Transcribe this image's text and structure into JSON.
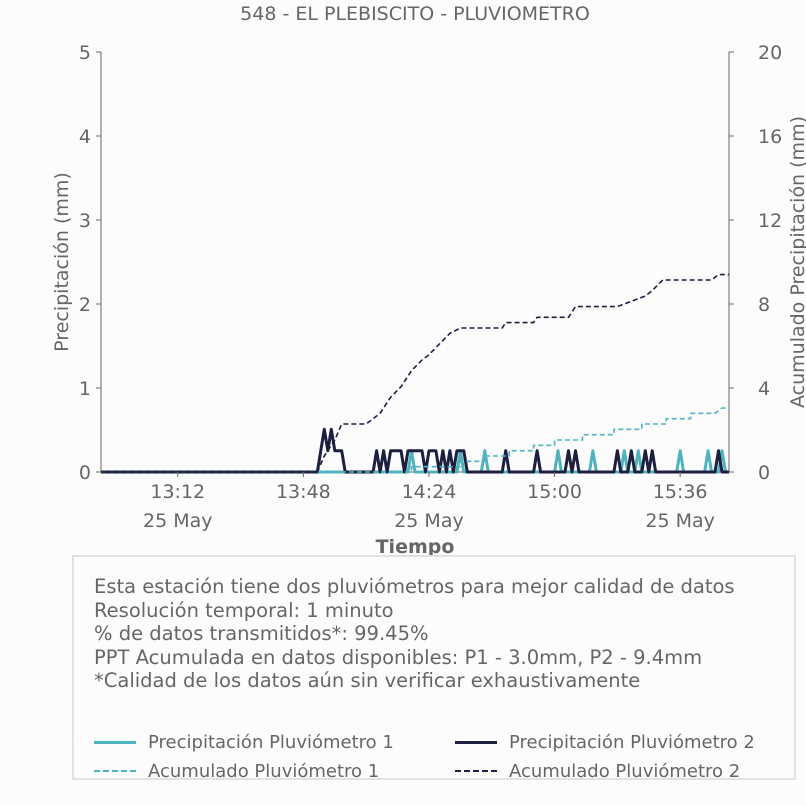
{
  "chart_data": {
    "type": "line",
    "title": "548 - EL PLEBISCITO - PLUVIOMETRO",
    "xlabel": "Tiempo",
    "ylabel": "Precipitación (mm)",
    "y2label": "Acumulado Precipitación (mm)",
    "xlim": [
      "12:50",
      "15:50"
    ],
    "ylim": [
      0,
      5
    ],
    "y2lim": [
      0,
      20
    ],
    "yticks": [
      "0",
      "1",
      "2",
      "3",
      "4",
      "5"
    ],
    "y2ticks": [
      "0",
      "4",
      "8",
      "12",
      "16",
      "20"
    ],
    "xticks": [
      {
        "time": "13:12",
        "label": "13:12",
        "date": "25 May"
      },
      {
        "time": "13:48",
        "label": "13:48",
        "date": ""
      },
      {
        "time": "14:24",
        "label": "14:24",
        "date": "25 May"
      },
      {
        "time": "15:00",
        "label": "15:00",
        "date": ""
      },
      {
        "time": "15:36",
        "label": "15:36",
        "date": "25 May"
      }
    ],
    "grid": false,
    "series": [
      {
        "name": "Precipitación Pluviómetro 1",
        "axis": "left",
        "style": "solid",
        "color": "#4fb3bf",
        "points": [
          [
            "12:50",
            0
          ],
          [
            "14:18",
            0
          ],
          [
            "14:19",
            0.254
          ],
          [
            "14:20",
            0
          ],
          [
            "14:32",
            0
          ],
          [
            "14:33",
            0.254
          ],
          [
            "14:34",
            0
          ],
          [
            "14:39",
            0
          ],
          [
            "14:40",
            0.254
          ],
          [
            "14:41",
            0
          ],
          [
            "15:00",
            0
          ],
          [
            "15:01",
            0.254
          ],
          [
            "15:02",
            0
          ],
          [
            "15:10",
            0
          ],
          [
            "15:11",
            0.254
          ],
          [
            "15:12",
            0
          ],
          [
            "15:19",
            0
          ],
          [
            "15:20",
            0.254
          ],
          [
            "15:21",
            0
          ],
          [
            "15:23",
            0
          ],
          [
            "15:24",
            0.254
          ],
          [
            "15:25",
            0
          ],
          [
            "15:35",
            0
          ],
          [
            "15:36",
            0.254
          ],
          [
            "15:37",
            0
          ],
          [
            "15:43",
            0
          ],
          [
            "15:44",
            0.254
          ],
          [
            "15:45",
            0
          ],
          [
            "15:47",
            0
          ],
          [
            "15:48",
            0.254
          ],
          [
            "15:49",
            0
          ]
        ]
      },
      {
        "name": "Precipitación Pluviómetro 2",
        "axis": "left",
        "style": "solid",
        "color": "#1c1f3f",
        "points": [
          [
            "12:50",
            0
          ],
          [
            "13:52",
            0
          ],
          [
            "13:54",
            0.508
          ],
          [
            "13:55",
            0.254
          ],
          [
            "13:56",
            0.508
          ],
          [
            "13:57",
            0.254
          ],
          [
            "13:59",
            0.254
          ],
          [
            "14:00",
            0
          ],
          [
            "14:08",
            0
          ],
          [
            "14:09",
            0.254
          ],
          [
            "14:10",
            0
          ],
          [
            "14:11",
            0.254
          ],
          [
            "14:12",
            0
          ],
          [
            "14:13",
            0.254
          ],
          [
            "14:16",
            0.254
          ],
          [
            "14:17",
            0
          ],
          [
            "14:18",
            0.254
          ],
          [
            "14:22",
            0.254
          ],
          [
            "14:23",
            0
          ],
          [
            "14:24",
            0.254
          ],
          [
            "14:26",
            0.254
          ],
          [
            "14:27",
            0
          ],
          [
            "14:28",
            0.254
          ],
          [
            "14:29",
            0
          ],
          [
            "14:30",
            0.254
          ],
          [
            "14:31",
            0
          ],
          [
            "14:32",
            0.254
          ],
          [
            "14:34",
            0.254
          ],
          [
            "14:35",
            0
          ],
          [
            "14:45",
            0
          ],
          [
            "14:46",
            0.254
          ],
          [
            "14:47",
            0
          ],
          [
            "14:54",
            0
          ],
          [
            "14:55",
            0.254
          ],
          [
            "14:56",
            0
          ],
          [
            "15:03",
            0
          ],
          [
            "15:04",
            0.254
          ],
          [
            "15:05",
            0
          ],
          [
            "15:06",
            0.254
          ],
          [
            "15:07",
            0
          ],
          [
            "15:17",
            0
          ],
          [
            "15:18",
            0.254
          ],
          [
            "15:19",
            0
          ],
          [
            "15:21",
            0
          ],
          [
            "15:22",
            0.254
          ],
          [
            "15:23",
            0
          ],
          [
            "15:25",
            0
          ],
          [
            "15:26",
            0.254
          ],
          [
            "15:27",
            0
          ],
          [
            "15:28",
            0.254
          ],
          [
            "15:29",
            0
          ],
          [
            "15:46",
            0
          ],
          [
            "15:47",
            0.254
          ],
          [
            "15:48",
            0
          ],
          [
            "15:50",
            0
          ]
        ]
      },
      {
        "name": "Acumulado Pluviómetro 1",
        "axis": "right",
        "style": "dashed",
        "color": "#4fb3bf",
        "points": [
          [
            "12:50",
            0
          ],
          [
            "14:19",
            0
          ],
          [
            "14:19",
            0.254
          ],
          [
            "14:33",
            0.254
          ],
          [
            "14:33",
            0.508
          ],
          [
            "14:40",
            0.508
          ],
          [
            "14:40",
            0.762
          ],
          [
            "14:47",
            0.762
          ],
          [
            "14:47",
            1.016
          ],
          [
            "14:54",
            1.016
          ],
          [
            "14:54",
            1.27
          ],
          [
            "15:00",
            1.27
          ],
          [
            "15:00",
            1.524
          ],
          [
            "15:08",
            1.524
          ],
          [
            "15:08",
            1.778
          ],
          [
            "15:17",
            1.778
          ],
          [
            "15:17",
            2.032
          ],
          [
            "15:25",
            2.032
          ],
          [
            "15:25",
            2.286
          ],
          [
            "15:32",
            2.286
          ],
          [
            "15:32",
            2.54
          ],
          [
            "15:39",
            2.54
          ],
          [
            "15:39",
            2.794
          ],
          [
            "15:46",
            2.794
          ],
          [
            "15:48",
            3.048
          ],
          [
            "15:50",
            3.048
          ]
        ]
      },
      {
        "name": "Acumulado Pluviómetro 2",
        "axis": "right",
        "style": "dashed",
        "color": "#1c1f3f",
        "points": [
          [
            "12:50",
            0
          ],
          [
            "13:52",
            0
          ],
          [
            "13:54",
            0.762
          ],
          [
            "13:57",
            1.524
          ],
          [
            "13:59",
            2.286
          ],
          [
            "14:06",
            2.286
          ],
          [
            "14:10",
            2.794
          ],
          [
            "14:13",
            3.556
          ],
          [
            "14:16",
            4.064
          ],
          [
            "14:19",
            4.826
          ],
          [
            "14:22",
            5.334
          ],
          [
            "14:24",
            5.588
          ],
          [
            "14:27",
            6.096
          ],
          [
            "14:30",
            6.604
          ],
          [
            "14:33",
            6.858
          ],
          [
            "14:40",
            6.858
          ],
          [
            "14:45",
            6.858
          ],
          [
            "14:46",
            7.112
          ],
          [
            "14:54",
            7.112
          ],
          [
            "14:55",
            7.366
          ],
          [
            "15:04",
            7.366
          ],
          [
            "15:06",
            7.874
          ],
          [
            "15:18",
            7.874
          ],
          [
            "15:22",
            8.128
          ],
          [
            "15:26",
            8.382
          ],
          [
            "15:28",
            8.636
          ],
          [
            "15:31",
            9.144
          ],
          [
            "15:45",
            9.144
          ],
          [
            "15:47",
            9.398
          ],
          [
            "15:50",
            9.398
          ]
        ]
      }
    ]
  },
  "info": {
    "lines": [
      "Esta estación tiene dos pluviómetros para mejor calidad de datos",
      "Resolución temporal: 1 minuto",
      "% de datos transmitidos*: 99.45%",
      "PPT Acumulada en datos disponibles: P1 - 3.0mm, P2 - 9.4mm",
      "*Calidad de los datos aún sin verificar exhaustivamente"
    ]
  },
  "legend": {
    "items": [
      {
        "label": "Precipitación Pluviómetro 1",
        "color": "#4fb3bf",
        "style": "solid"
      },
      {
        "label": "Precipitación Pluviómetro 2",
        "color": "#1c1f3f",
        "style": "solid"
      },
      {
        "label": "Acumulado Pluviómetro 1",
        "color": "#4fb3bf",
        "style": "dashed"
      },
      {
        "label": "Acumulado Pluviómetro 2",
        "color": "#1c1f3f",
        "style": "dashed"
      }
    ]
  }
}
